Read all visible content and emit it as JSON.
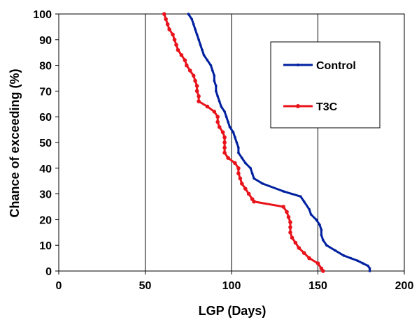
{
  "chart_data": {
    "type": "line",
    "xlabel": "LGP (Days)",
    "ylabel": "Chance of exceeding (%)",
    "xlim": [
      0,
      200
    ],
    "ylim": [
      0,
      100
    ],
    "xticks": [
      0,
      50,
      100,
      150,
      200
    ],
    "yticks": [
      0,
      10,
      20,
      30,
      40,
      50,
      60,
      70,
      80,
      90,
      100
    ],
    "grid": "vertical",
    "legend": "top-right",
    "series": [
      {
        "name": "Control",
        "color": "#00209f",
        "points": [
          [
            75,
            100
          ],
          [
            77,
            98
          ],
          [
            78,
            96
          ],
          [
            79,
            94
          ],
          [
            80,
            92
          ],
          [
            81,
            90
          ],
          [
            82,
            88
          ],
          [
            83,
            86
          ],
          [
            84,
            84
          ],
          [
            86,
            82
          ],
          [
            88,
            80
          ],
          [
            89,
            78
          ],
          [
            90,
            76
          ],
          [
            90,
            74
          ],
          [
            91,
            72
          ],
          [
            91,
            70
          ],
          [
            92,
            68
          ],
          [
            93,
            66
          ],
          [
            94,
            64
          ],
          [
            96,
            62
          ],
          [
            97,
            60
          ],
          [
            98,
            58
          ],
          [
            99,
            56
          ],
          [
            101,
            54
          ],
          [
            102,
            52
          ],
          [
            103,
            50
          ],
          [
            104,
            48
          ],
          [
            104,
            46
          ],
          [
            106,
            44
          ],
          [
            108,
            42
          ],
          [
            111,
            40
          ],
          [
            112,
            38
          ],
          [
            113,
            36
          ],
          [
            118,
            34
          ],
          [
            130,
            31
          ],
          [
            140,
            29
          ],
          [
            142,
            27
          ],
          [
            145,
            24
          ],
          [
            146,
            22
          ],
          [
            149,
            20
          ],
          [
            151,
            18
          ],
          [
            152,
            16
          ],
          [
            152,
            14
          ],
          [
            153,
            12
          ],
          [
            155,
            10
          ],
          [
            160,
            8
          ],
          [
            165,
            6
          ],
          [
            169,
            5
          ],
          [
            173,
            4
          ],
          [
            176,
            3
          ],
          [
            179,
            2
          ],
          [
            180,
            1
          ],
          [
            180,
            0
          ]
        ]
      },
      {
        "name": "T3C",
        "color": "#e8131b",
        "points": [
          [
            61,
            100
          ],
          [
            62,
            98
          ],
          [
            63,
            96
          ],
          [
            64,
            94
          ],
          [
            66,
            92
          ],
          [
            67,
            90
          ],
          [
            68,
            88
          ],
          [
            69,
            86
          ],
          [
            71,
            84
          ],
          [
            73,
            82
          ],
          [
            74,
            80
          ],
          [
            76,
            78
          ],
          [
            78,
            76
          ],
          [
            79,
            74
          ],
          [
            80,
            72
          ],
          [
            80,
            70
          ],
          [
            81,
            68
          ],
          [
            81,
            66
          ],
          [
            86,
            64
          ],
          [
            90,
            62
          ],
          [
            92,
            60
          ],
          [
            92,
            58
          ],
          [
            93,
            56
          ],
          [
            95,
            54
          ],
          [
            96,
            52
          ],
          [
            96,
            50
          ],
          [
            96,
            48
          ],
          [
            96,
            46
          ],
          [
            98,
            44
          ],
          [
            102,
            42
          ],
          [
            104,
            40
          ],
          [
            104,
            38
          ],
          [
            105,
            36
          ],
          [
            106,
            34
          ],
          [
            108,
            32
          ],
          [
            110,
            30
          ],
          [
            112,
            28
          ],
          [
            113,
            27
          ],
          [
            130,
            25
          ],
          [
            132,
            23
          ],
          [
            133,
            21
          ],
          [
            134,
            19
          ],
          [
            134,
            17
          ],
          [
            134,
            15
          ],
          [
            135,
            13
          ],
          [
            137,
            11
          ],
          [
            139,
            9
          ],
          [
            142,
            7
          ],
          [
            145,
            5
          ],
          [
            150,
            3
          ],
          [
            152,
            1
          ],
          [
            153,
            0
          ]
        ]
      }
    ]
  }
}
